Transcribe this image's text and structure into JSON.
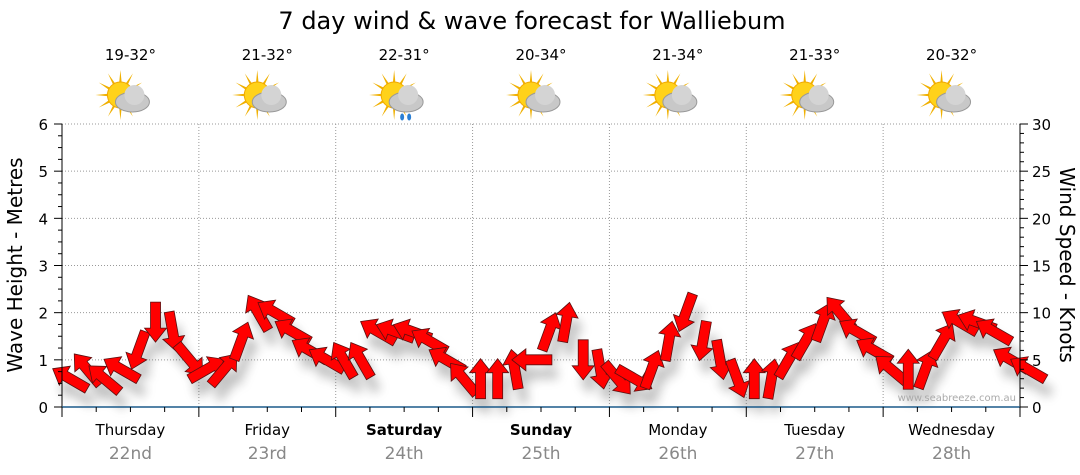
{
  "chart_data": {
    "type": "scatter",
    "title": "7 day wind & wave forecast for Walliebum",
    "ylabel_left": "Wave Height - Metres",
    "ylabel_right": "Wind Speed - Knots",
    "ylim_left": [
      0,
      6
    ],
    "ylim_right": [
      0,
      30
    ],
    "left_ticks": [
      "0",
      "1",
      "2",
      "3",
      "4",
      "5",
      "6"
    ],
    "right_ticks": [
      "0",
      "5",
      "10",
      "15",
      "20",
      "25",
      "30"
    ],
    "grid": true,
    "watermark": "www.seabreeze.com.au",
    "days": [
      {
        "day": "Thursday",
        "date": "22nd",
        "temp": "19-32°",
        "icon": "sun-cloud",
        "bold": false
      },
      {
        "day": "Friday",
        "date": "23rd",
        "temp": "21-32°",
        "icon": "sun-cloud",
        "bold": false
      },
      {
        "day": "Saturday",
        "date": "24th",
        "temp": "22-31°",
        "icon": "sun-cloud-rain",
        "bold": true
      },
      {
        "day": "Sunday",
        "date": "25th",
        "temp": "20-34°",
        "icon": "sun-cloud",
        "bold": true
      },
      {
        "day": "Monday",
        "date": "26th",
        "temp": "21-34°",
        "icon": "sun-cloud",
        "bold": false
      },
      {
        "day": "Tuesday",
        "date": "27th",
        "temp": "21-33°",
        "icon": "sun-cloud",
        "bold": false
      },
      {
        "day": "Wednesday",
        "date": "28th",
        "temp": "20-32°",
        "icon": "sun-cloud",
        "bold": false
      }
    ],
    "wind_interval_hours": 3,
    "wind_speed_knots": [
      3,
      4,
      3,
      4,
      6,
      9,
      8,
      5,
      4,
      4,
      7,
      10,
      10,
      8,
      6,
      5,
      5,
      5,
      8,
      8,
      8,
      7,
      5,
      3,
      3,
      3,
      4,
      5,
      8,
      9,
      5,
      4,
      3,
      3,
      4,
      7,
      10,
      7,
      5,
      3,
      3,
      3,
      5,
      7,
      9,
      10,
      8,
      6,
      4,
      4,
      4,
      7,
      9,
      9,
      8,
      5,
      4
    ],
    "wind_arrow_heading_deg": [
      300,
      320,
      310,
      300,
      200,
      180,
      170,
      140,
      60,
      40,
      20,
      330,
      300,
      300,
      300,
      300,
      330,
      330,
      300,
      290,
      290,
      300,
      300,
      320,
      0,
      0,
      350,
      270,
      20,
      10,
      180,
      170,
      140,
      120,
      20,
      10,
      200,
      190,
      170,
      160,
      0,
      10,
      30,
      30,
      20,
      320,
      300,
      300,
      310,
      0,
      20,
      30,
      300,
      290,
      300,
      300,
      300
    ],
    "arrow_color": "#ff0000"
  }
}
